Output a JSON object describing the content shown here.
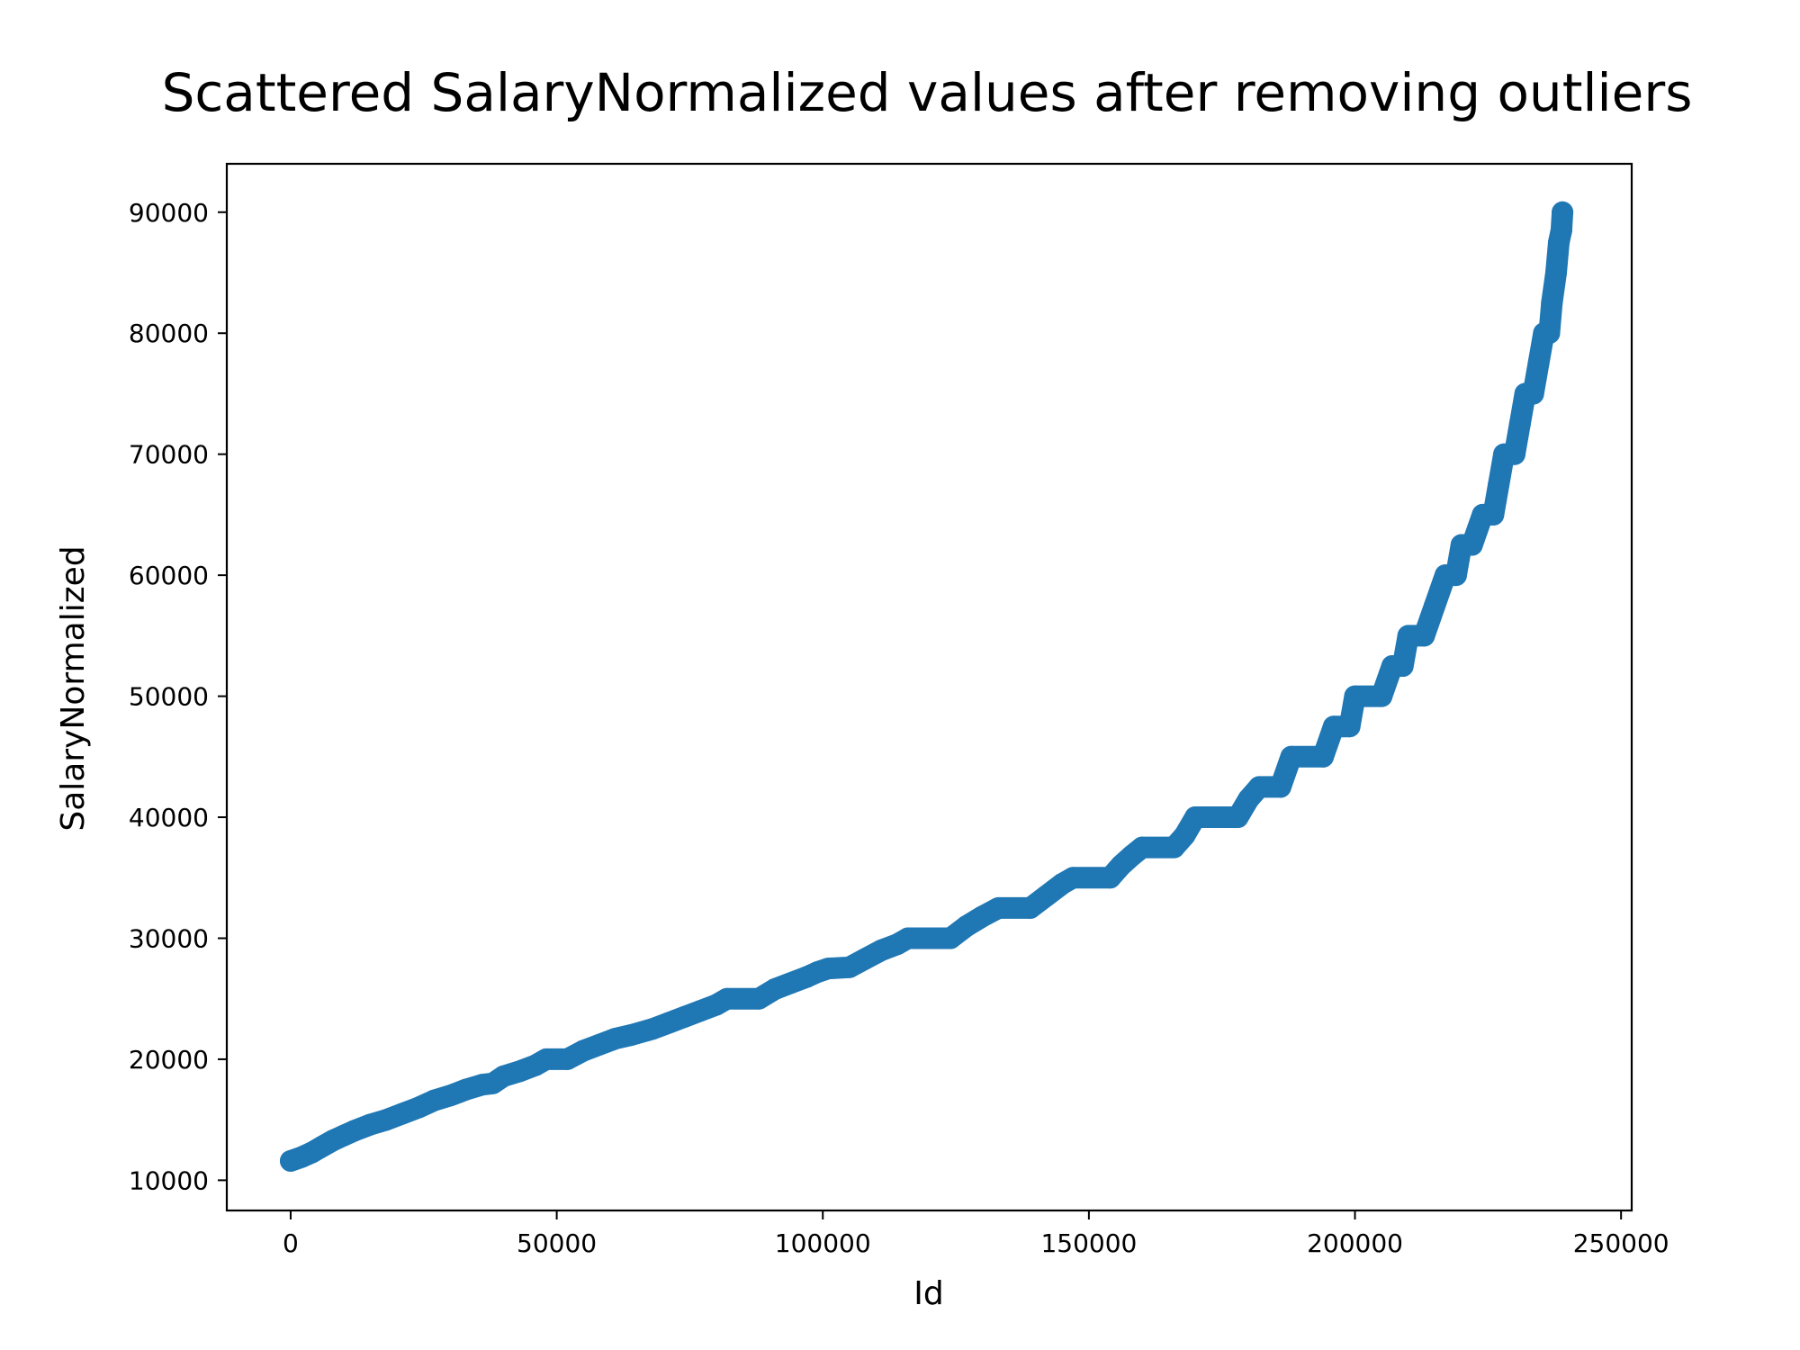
{
  "chart_data": {
    "type": "scatter",
    "title": "Scattered SalaryNormalized values after removing outliers",
    "xlabel": "Id",
    "ylabel": "SalaryNormalized",
    "xlim": [
      -12000,
      252000
    ],
    "ylim": [
      7500,
      94000
    ],
    "xticks": [
      0,
      50000,
      100000,
      150000,
      200000,
      250000
    ],
    "yticks": [
      10000,
      20000,
      30000,
      40000,
      50000,
      60000,
      70000,
      80000,
      90000
    ],
    "grid": false,
    "legend": "none",
    "marker_color": "#1f77b4",
    "series": [
      {
        "points": [
          [
            0,
            11600
          ],
          [
            2000,
            11900
          ],
          [
            4000,
            12300
          ],
          [
            6000,
            12800
          ],
          [
            8000,
            13300
          ],
          [
            10000,
            13700
          ],
          [
            12000,
            14100
          ],
          [
            15000,
            14600
          ],
          [
            18000,
            15000
          ],
          [
            21000,
            15500
          ],
          [
            24000,
            16000
          ],
          [
            27000,
            16600
          ],
          [
            30000,
            17000
          ],
          [
            33000,
            17500
          ],
          [
            36000,
            17900
          ],
          [
            38000,
            18000
          ],
          [
            40000,
            18600
          ],
          [
            43000,
            19000
          ],
          [
            46000,
            19500
          ],
          [
            48000,
            20000
          ],
          [
            52000,
            20000
          ],
          [
            55000,
            20700
          ],
          [
            58000,
            21200
          ],
          [
            61000,
            21700
          ],
          [
            64000,
            22000
          ],
          [
            68000,
            22500
          ],
          [
            71000,
            23000
          ],
          [
            74000,
            23500
          ],
          [
            77000,
            24000
          ],
          [
            80000,
            24500
          ],
          [
            82000,
            25000
          ],
          [
            88000,
            25000
          ],
          [
            91000,
            25800
          ],
          [
            94000,
            26300
          ],
          [
            97000,
            26800
          ],
          [
            99000,
            27200
          ],
          [
            101000,
            27500
          ],
          [
            105000,
            27600
          ],
          [
            108000,
            28300
          ],
          [
            111000,
            29000
          ],
          [
            114000,
            29500
          ],
          [
            116000,
            30000
          ],
          [
            124000,
            30000
          ],
          [
            127000,
            31000
          ],
          [
            130000,
            31800
          ],
          [
            133000,
            32500
          ],
          [
            139000,
            32500
          ],
          [
            142000,
            33500
          ],
          [
            145000,
            34500
          ],
          [
            147000,
            35000
          ],
          [
            154000,
            35000
          ],
          [
            156000,
            36000
          ],
          [
            158000,
            36800
          ],
          [
            160000,
            37500
          ],
          [
            166000,
            37500
          ],
          [
            168000,
            38500
          ],
          [
            170000,
            40000
          ],
          [
            178000,
            40000
          ],
          [
            180000,
            41500
          ],
          [
            182000,
            42500
          ],
          [
            186000,
            42500
          ],
          [
            188000,
            45000
          ],
          [
            194000,
            45000
          ],
          [
            196000,
            47500
          ],
          [
            199000,
            47500
          ],
          [
            200000,
            50000
          ],
          [
            205000,
            50000
          ],
          [
            207000,
            52500
          ],
          [
            209000,
            52500
          ],
          [
            210000,
            55000
          ],
          [
            213000,
            55000
          ],
          [
            215000,
            57500
          ],
          [
            217000,
            60000
          ],
          [
            219000,
            60000
          ],
          [
            220000,
            62500
          ],
          [
            222000,
            62500
          ],
          [
            224000,
            65000
          ],
          [
            226000,
            65000
          ],
          [
            227000,
            67500
          ],
          [
            228000,
            70000
          ],
          [
            230000,
            70000
          ],
          [
            231000,
            72500
          ],
          [
            232000,
            75000
          ],
          [
            233500,
            75000
          ],
          [
            234500,
            77500
          ],
          [
            235500,
            80000
          ],
          [
            236500,
            80000
          ],
          [
            237000,
            82500
          ],
          [
            237800,
            85000
          ],
          [
            238300,
            87500
          ],
          [
            238800,
            88500
          ],
          [
            239000,
            90000
          ]
        ]
      }
    ]
  }
}
